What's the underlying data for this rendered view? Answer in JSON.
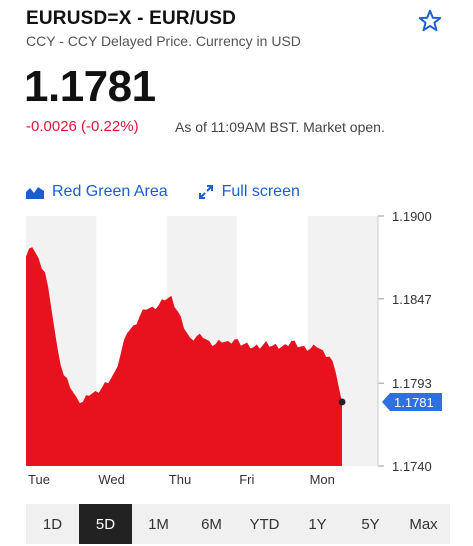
{
  "header": {
    "title": "EURUSD=X - EUR/USD",
    "subtitle": "CCY - CCY Delayed Price. Currency in USD"
  },
  "quote": {
    "price": "1.1781",
    "change": "-0.0026 (-0.22%)",
    "as_of": "As of 11:09AM BST. Market open."
  },
  "toolbar": {
    "chart_style_label": "Red Green Area",
    "fullscreen_label": "Full screen"
  },
  "colors": {
    "accent": "#1a5fd0",
    "negative": "#d9183b",
    "area_fill": "#e8121e",
    "current_price_tag": "#2f6fe0"
  },
  "ranges": [
    "1D",
    "5D",
    "1M",
    "6M",
    "YTD",
    "1Y",
    "5Y",
    "Max"
  ],
  "active_range": "5D",
  "chart_data": {
    "type": "area",
    "title": "",
    "x_labels": [
      "Tue",
      "Wed",
      "Thu",
      "Fri",
      "Mon"
    ],
    "y_tick_labels": [
      "1.1900",
      "1.1847",
      "1.1793",
      "1.1740"
    ],
    "y_ticks": [
      1.19,
      1.1847,
      1.1793,
      1.174
    ],
    "ylim": [
      1.174,
      1.19
    ],
    "current_price_label": "1.1781",
    "current_price": 1.1781,
    "x": [
      0,
      0.02,
      0.04,
      0.06,
      0.08,
      0.1,
      0.12,
      0.14,
      0.16,
      0.18,
      0.2,
      0.22,
      0.24,
      0.26,
      0.28,
      0.3,
      0.32,
      0.34,
      0.36,
      0.38,
      0.4,
      0.42,
      0.44,
      0.46,
      0.48,
      0.5,
      0.52,
      0.54,
      0.56,
      0.58,
      0.6,
      0.62,
      0.64,
      0.66,
      0.68,
      0.7,
      0.72,
      0.74,
      0.76,
      0.78,
      0.8,
      0.82,
      0.84,
      0.86,
      0.88,
      0.9,
      0.92,
      0.94,
      0.96,
      0.98,
      1.0
    ],
    "values": [
      1.1874,
      1.188,
      1.1873,
      1.1864,
      1.1841,
      1.1815,
      1.1798,
      1.179,
      1.1784,
      1.1781,
      1.1785,
      1.1788,
      1.179,
      1.1793,
      1.18,
      1.1812,
      1.1825,
      1.183,
      1.1836,
      1.184,
      1.1842,
      1.1843,
      1.1846,
      1.1849,
      1.1839,
      1.1828,
      1.1822,
      1.1823,
      1.1822,
      1.182,
      1.1818,
      1.1819,
      1.182,
      1.1821,
      1.1817,
      1.1819,
      1.1816,
      1.1815,
      1.182,
      1.1817,
      1.1815,
      1.1818,
      1.182,
      1.1816,
      1.1817,
      1.1815,
      1.1816,
      1.1814,
      1.181,
      1.18,
      1.1781
    ]
  }
}
